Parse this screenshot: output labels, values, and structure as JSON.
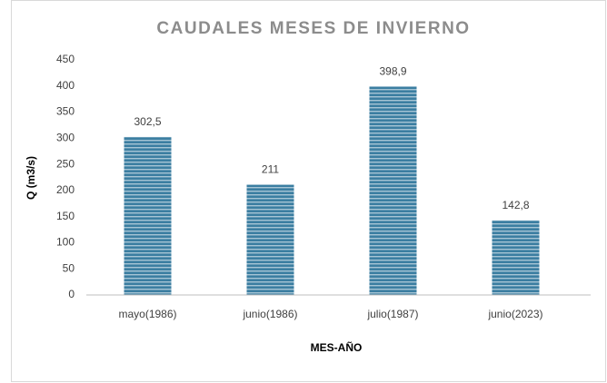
{
  "chart_data": {
    "type": "bar",
    "title": "CAUDALES MESES DE INVIERNO",
    "x_label": "MES-AÑO",
    "y_label": "Q (m3/s)",
    "categories": [
      "mayo(1986)",
      "junio(1986)",
      "julio(1987)",
      "junio(2023)"
    ],
    "values": [
      302.5,
      211,
      398.9,
      142.8
    ],
    "value_labels": [
      "302,5",
      "211",
      "398,9",
      "142,8"
    ],
    "color": "#3b7ea1",
    "ylim": [
      0,
      450
    ],
    "yticks": [
      0,
      50,
      100,
      150,
      200,
      250,
      300,
      350,
      400,
      450
    ],
    "grid": false
  }
}
